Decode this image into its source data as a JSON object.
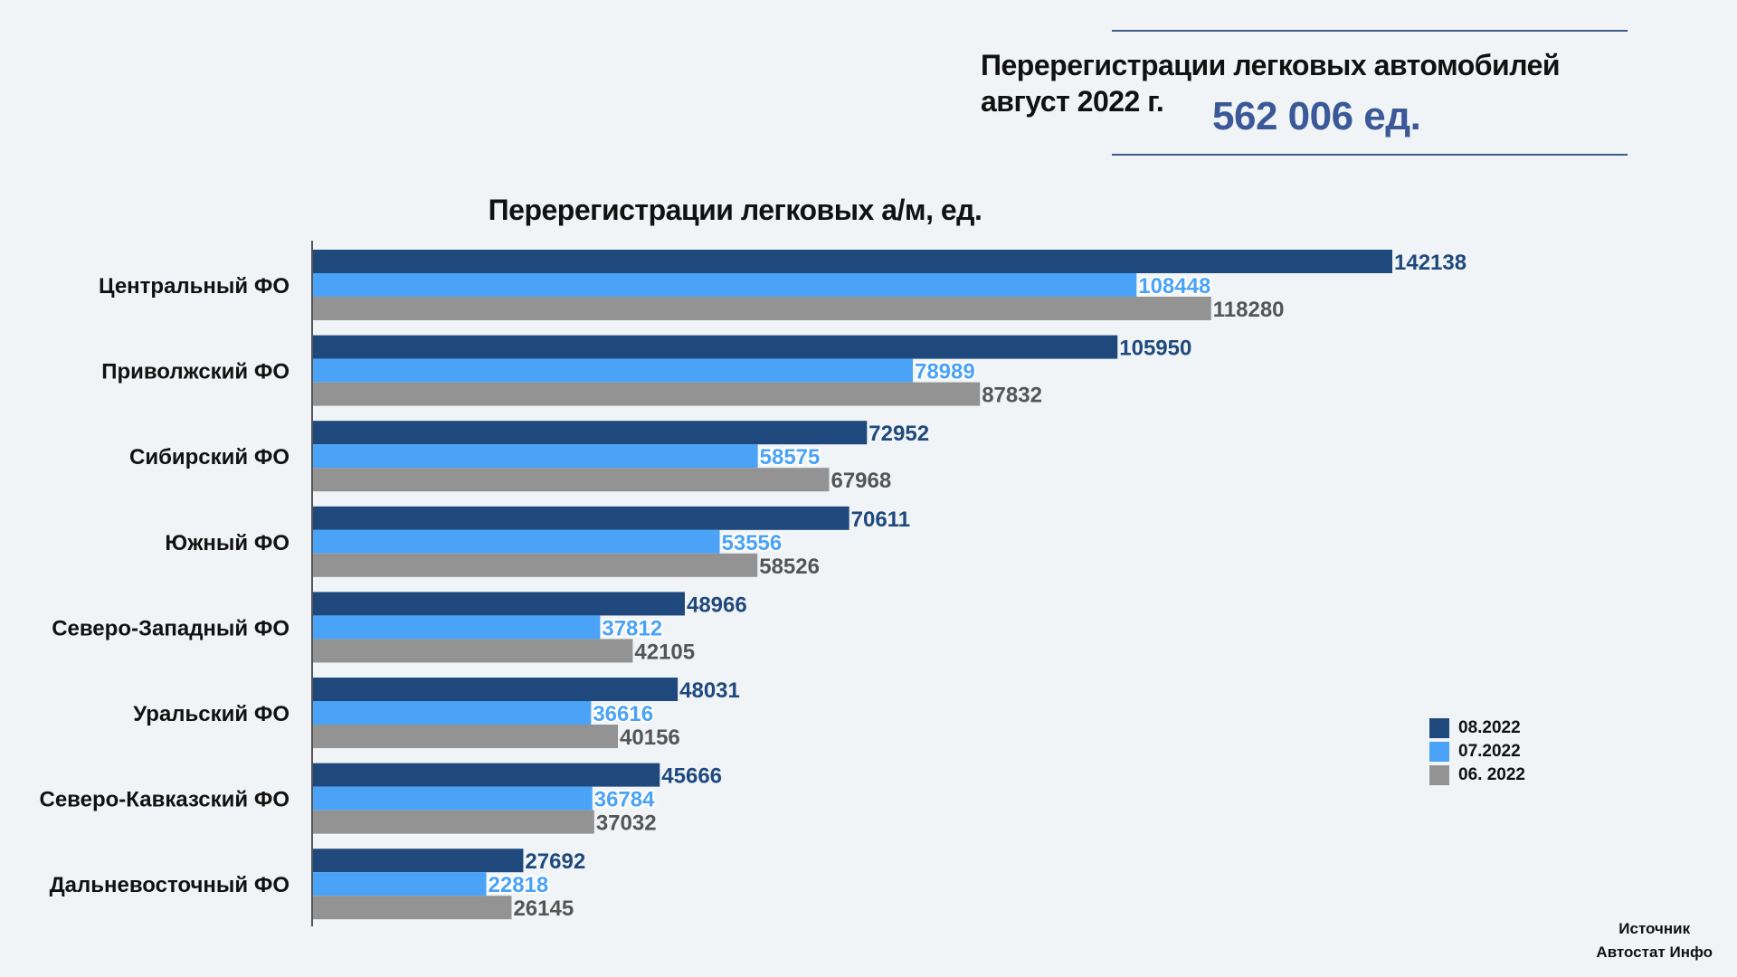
{
  "header": {
    "title_line1": "Перерегистрации легковых автомобилей",
    "title_line2": "август 2022 г.",
    "total": "562 006 ед."
  },
  "source": {
    "line1": "Источник",
    "line2": "Автостат Инфо"
  },
  "colors": {
    "aug": "#1f497d",
    "jul": "#4aa3f7",
    "jun": "#939393"
  },
  "chart_data": {
    "type": "bar",
    "orientation": "horizontal",
    "title": "Перерегистрации легковых а/м, ед.",
    "categories": [
      "Центральный ФО",
      "Приволжский ФО",
      "Сибирский ФО",
      "Южный ФО",
      "Северо-Западный ФО",
      "Уральский ФО",
      "Северо-Кавказский ФО",
      "Дальневосточный ФО"
    ],
    "series": [
      {
        "name": "08.2022",
        "color": "#1f497d",
        "values": [
          142138,
          105950,
          72952,
          70611,
          48966,
          48031,
          45666,
          27692
        ]
      },
      {
        "name": "07.2022",
        "color": "#4aa3f7",
        "values": [
          108448,
          78989,
          58575,
          53556,
          37812,
          36616,
          36784,
          22818
        ]
      },
      {
        "name": "06. 2022",
        "color": "#939393",
        "values": [
          118280,
          87832,
          67968,
          58526,
          42105,
          40156,
          37032,
          26145
        ]
      }
    ],
    "data_labels": true,
    "legend_position": "right",
    "grid": false
  }
}
